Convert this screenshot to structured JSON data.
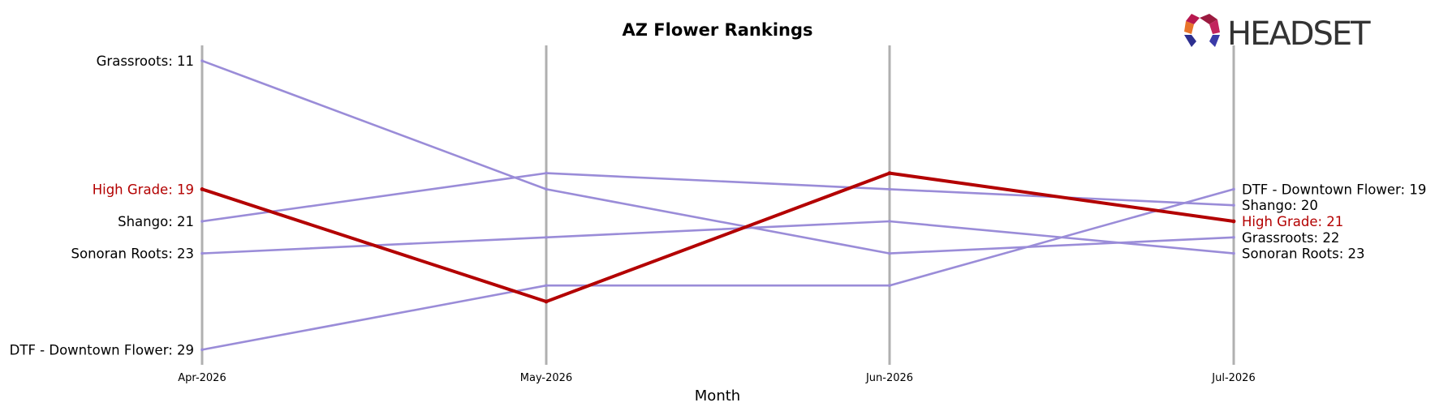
{
  "brand": {
    "name": "HEADSET",
    "text_color": "#333333"
  },
  "colors": {
    "highlight": "#b30000",
    "other": "#9a8cd8",
    "axis_line": "#b0b0b0"
  },
  "chart_data": {
    "type": "line",
    "title": "AZ Flower Rankings",
    "xlabel": "Month",
    "ylabel": "",
    "y_inverted": true,
    "grid": false,
    "categories": [
      "Apr-2026",
      "May-2026",
      "Jun-2026",
      "Jul-2026"
    ],
    "highlight_series": "High Grade",
    "series": [
      {
        "name": "Grassroots",
        "values": [
          11,
          19,
          23,
          22
        ]
      },
      {
        "name": "Shango",
        "values": [
          21,
          18,
          19,
          20
        ]
      },
      {
        "name": "Sonoran Roots",
        "values": [
          23,
          22,
          21,
          23
        ]
      },
      {
        "name": "DTF - Downtown Flower",
        "values": [
          29,
          25,
          25,
          19
        ]
      },
      {
        "name": "High Grade",
        "values": [
          19,
          26,
          18,
          21
        ]
      }
    ]
  }
}
